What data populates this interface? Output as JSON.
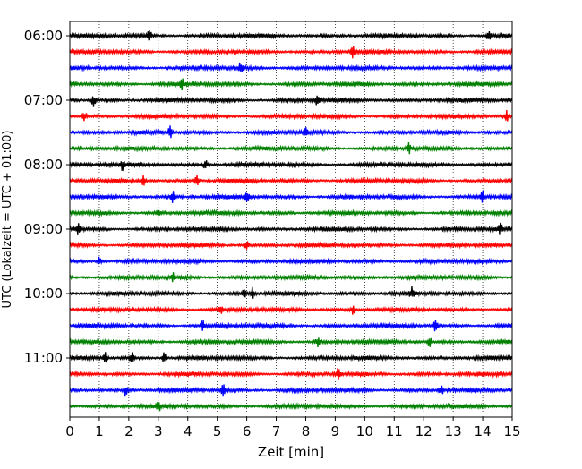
{
  "chart_data": {
    "type": "line",
    "title": "",
    "xlabel": "Zeit  [min]",
    "ylabel": "UTC (Lokalzeit = UTC + 01:00)",
    "xlim": [
      0,
      15
    ],
    "x_ticks": [
      "0",
      "1",
      "2",
      "3",
      "4",
      "5",
      "6",
      "7",
      "8",
      "9",
      "10",
      "11",
      "12",
      "13",
      "14",
      "15"
    ],
    "y_tick_labels": [
      "06:00",
      "07:00",
      "08:00",
      "09:00",
      "10:00",
      "11:00"
    ],
    "grid": "vertical dotted",
    "colors": [
      "#000000",
      "#ff0000",
      "#0000ff",
      "#008000"
    ],
    "series": [
      {
        "start": "06:00",
        "events": [
          2.7,
          14.2
        ]
      },
      {
        "start": "06:15",
        "events": [
          9.6
        ]
      },
      {
        "start": "06:30",
        "events": [
          5.8
        ]
      },
      {
        "start": "06:45",
        "events": [
          3.8
        ]
      },
      {
        "start": "07:00",
        "events": [
          0.8,
          8.4
        ]
      },
      {
        "start": "07:15",
        "events": [
          0.5,
          14.8
        ]
      },
      {
        "start": "07:30",
        "events": [
          3.4,
          8.0
        ]
      },
      {
        "start": "07:45",
        "events": [
          11.5
        ]
      },
      {
        "start": "08:00",
        "events": [
          1.8,
          4.6
        ]
      },
      {
        "start": "08:15",
        "events": [
          2.5,
          4.3
        ]
      },
      {
        "start": "08:30",
        "events": [
          3.5,
          6.0,
          14.0
        ]
      },
      {
        "start": "08:45",
        "events": [
          3.0
        ]
      },
      {
        "start": "09:00",
        "events": [
          0.3,
          14.6
        ]
      },
      {
        "start": "09:15",
        "events": [
          6.0
        ]
      },
      {
        "start": "09:30",
        "events": [
          1.0
        ]
      },
      {
        "start": "09:45",
        "events": [
          3.5
        ]
      },
      {
        "start": "10:00",
        "events": [
          5.9,
          6.2,
          11.6
        ]
      },
      {
        "start": "10:15",
        "events": [
          5.1,
          9.6
        ]
      },
      {
        "start": "10:30",
        "events": [
          4.5,
          12.4
        ]
      },
      {
        "start": "10:45",
        "events": [
          8.4,
          12.2
        ]
      },
      {
        "start": "11:00",
        "events": [
          1.2,
          2.1,
          3.2
        ]
      },
      {
        "start": "11:15",
        "events": [
          9.1
        ]
      },
      {
        "start": "11:30",
        "events": [
          1.9,
          5.2,
          12.6
        ]
      },
      {
        "start": "11:45",
        "events": [
          3.0
        ]
      }
    ]
  }
}
